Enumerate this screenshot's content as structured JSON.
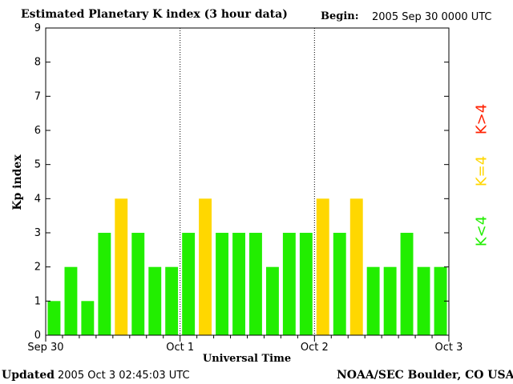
{
  "header": {
    "title": "Estimated Planetary K index (3 hour data)",
    "begin_label": "Begin:",
    "begin_value": "2005 Sep 30 0000 UTC"
  },
  "footer": {
    "updated_label": "Updated",
    "updated_value": "2005 Oct  3 02:45:03 UTC",
    "credit": "NOAA/SEC Boulder, CO USA"
  },
  "legend": {
    "high": {
      "label": "K>4",
      "color": "#ff2000"
    },
    "equal": {
      "label": "K=4",
      "color": "#ffd700"
    },
    "low": {
      "label": "K<4",
      "color": "#22ee00"
    }
  },
  "chart_data": {
    "type": "bar",
    "title": "Estimated Planetary K index (3 hour data)",
    "xlabel": "Universal Time",
    "ylabel": "Kp index",
    "ylim": [
      0,
      9
    ],
    "yticks": [
      0,
      1,
      2,
      3,
      4,
      5,
      6,
      7,
      8,
      9
    ],
    "xtick_labels": [
      "Sep 30",
      "Oct 1",
      "Oct 2",
      "Oct 3"
    ],
    "day_dividers": [
      1,
      2
    ],
    "values": [
      1,
      2,
      1,
      3,
      4,
      3,
      2,
      2,
      3,
      4,
      3,
      3,
      3,
      2,
      3,
      3,
      4,
      3,
      4,
      2,
      2,
      3,
      2,
      2
    ],
    "bars_per_day": 8,
    "colors": {
      "low": "#22ee00",
      "equal": "#ffd700",
      "high": "#ff2000"
    }
  }
}
